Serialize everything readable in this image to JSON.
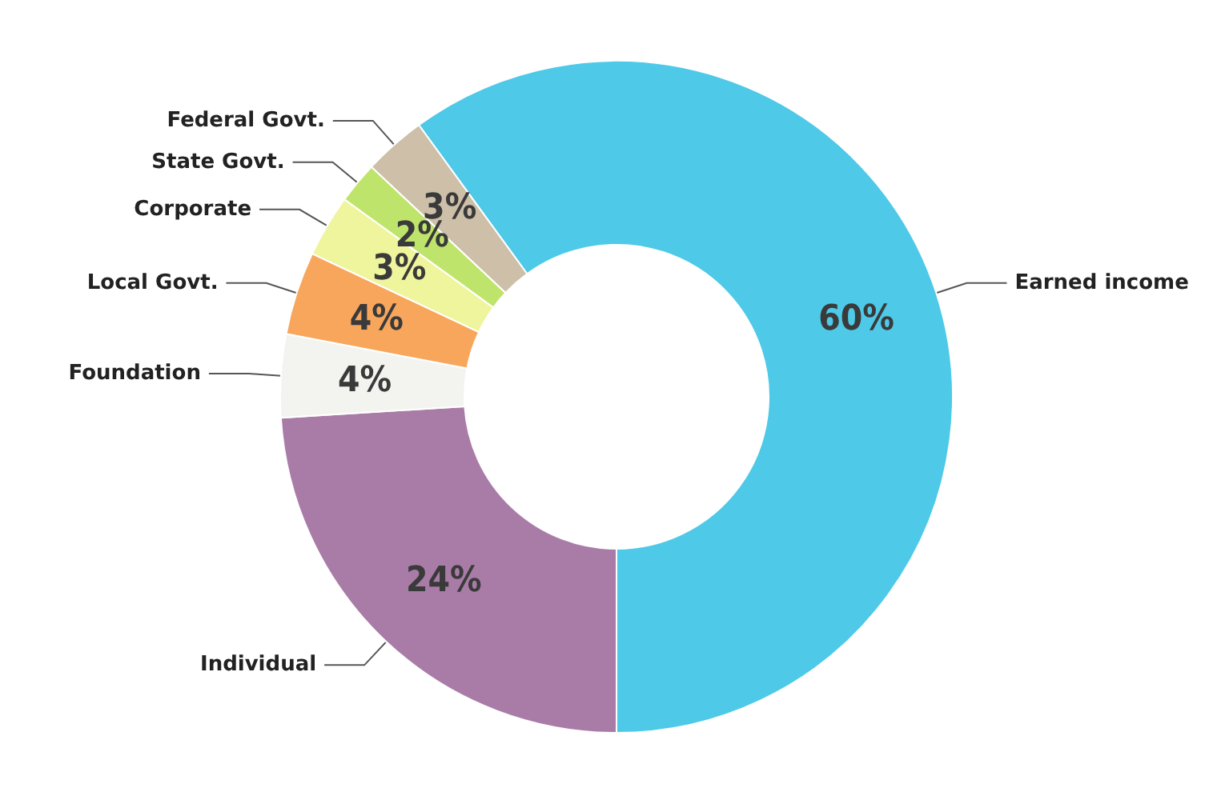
{
  "chart_data": {
    "type": "donut",
    "categories": [
      "Earned income",
      "Individual",
      "Foundation",
      "Local Govt.",
      "Corporate",
      "State Govt.",
      "Federal Govt."
    ],
    "values": [
      60,
      24,
      4,
      4,
      3,
      2,
      3
    ],
    "colors": [
      "#4ec9e8",
      "#a97ca8",
      "#f3f3f0",
      "#f7a65c",
      "#eff59c",
      "#bfe46c",
      "#cdbfa8"
    ],
    "value_labels": [
      "60%",
      "24%",
      "4%",
      "4%",
      "3%",
      "2%",
      "3%"
    ],
    "legend": false
  }
}
